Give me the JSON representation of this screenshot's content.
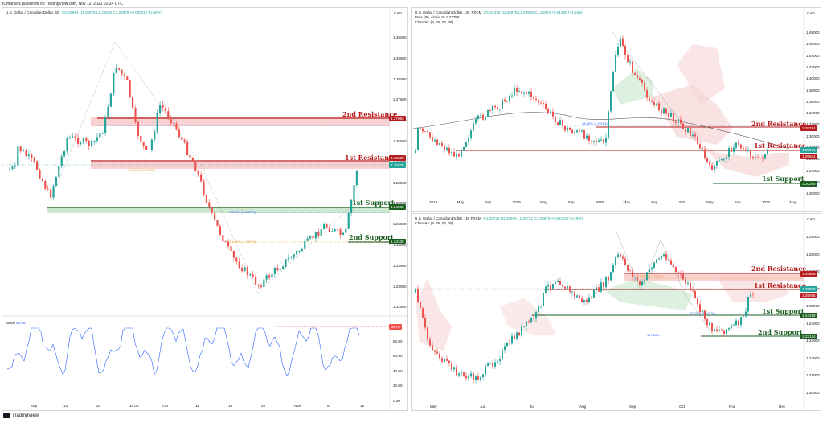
{
  "header": {
    "published": "ICmarkets published on TradingView.com, Nov 12, 2021 02:24 UTC"
  },
  "left_chart": {
    "title": "U.S. Dollar / Canadian Dollar, 4h,",
    "ohlc": "O1.25944  H1.25975  L1.25925  C1.25975  +0.00031 (+0.02%)",
    "currency": "CAD",
    "price_ticks": [
      "1.29000",
      "1.28500",
      "1.28000",
      "1.27500",
      "1.27000",
      "1.26500",
      "1.26000",
      "1.25500",
      "1.25000",
      "1.24500",
      "1.24000",
      "1.23500",
      "1.23000",
      "1.22500"
    ],
    "time_ticks": [
      "Sep",
      "13",
      "20",
      "14:00",
      "Oct",
      "11",
      "18",
      "25",
      "Nov",
      "8",
      "15"
    ],
    "levels": {
      "r2": {
        "label": "2nd Resistance",
        "price": "1.27083"
      },
      "r1": {
        "label": "1st Resistance",
        "price": "1.26039"
      },
      "s1": {
        "label": "1st Support",
        "price": "1.24935"
      },
      "s2": {
        "label": "2nd Support",
        "price": "1.24100"
      },
      "last": "1.25975"
    },
    "fib_labels": {
      "f618_top": "61.80% (1.25925)",
      "f382": "38.20% (1.24799)",
      "f618_low": "61.80% (1.24079)"
    },
    "stoch": {
      "label": "Stoch",
      "value": "90.95",
      "badge": "98.70",
      "ticks": [
        "80.00",
        "60.00",
        "40.00",
        "20.00",
        "0.00"
      ]
    }
  },
  "tr_chart": {
    "title": "U.S. Dollar / Canadian Dollar, 1W, FXCM",
    "ohlc": "O1.24430  H1.25975  L1.23869  C1.25974  +0.01446 (+1.16%)",
    "ema": "EMA (89, close, 0)  1.27756",
    "ichimoku": "Ichimoku (9, 26, 52, 26)",
    "currency": "CAD",
    "price_ticks": [
      "1.48000",
      "1.46000",
      "1.44000",
      "1.42000",
      "1.40000",
      "1.38000",
      "1.36000",
      "1.34000",
      "1.32000",
      "1.30000",
      "1.28000",
      "1.26000",
      "1.24000",
      "1.22000",
      "1.20000"
    ],
    "time_ticks": [
      "2018",
      "May",
      "Sep",
      "2019",
      "May",
      "Sep",
      "2020",
      "May",
      "Sep",
      "2021",
      "May",
      "Sep",
      "2022",
      "May"
    ],
    "levels": {
      "r2": {
        "label": "2nd Resistance",
        "price": "1.29784"
      },
      "r1": {
        "label": "1st Resistance",
        "price": "1.25944"
      },
      "s1": {
        "label": "1st Support",
        "price": "1.20290"
      },
      "last": "1.25974"
    },
    "fib_label": "38.20% (1.29784)"
  },
  "br_chart": {
    "title": "U.S. Dollar / Canadian Dollar, 1D, FXCM",
    "ohlc": "O1.25722  H1.25975  L1.25721  C1.25975  +0.00253 (+0.20%)",
    "ichimoku": "Ichimoku (9, 26, 52, 26)",
    "currency": "CAD",
    "price_ticks": [
      "1.29000",
      "1.28000",
      "1.27000",
      "1.26000",
      "1.25000",
      "1.24000",
      "1.23000",
      "1.22000",
      "1.21000",
      "1.20000"
    ],
    "time_ticks": [
      "May",
      "Jun",
      "Jul",
      "Aug",
      "Sep",
      "Oct",
      "Nov",
      "Dec"
    ],
    "levels": {
      "r2": {
        "label": "2nd Resistance",
        "price": "1.26906"
      },
      "r1": {
        "label": "1st Resistance",
        "price": "1.25915"
      },
      "s1": {
        "label": "1st Support",
        "price": "1.24219"
      },
      "s2": {
        "label": "2nd Support",
        "price": "1.23124"
      },
      "last": "1.25975"
    },
    "fib_labels": {
      "f618": "61.80% (1.26906)",
      "f50": "50.00% (1.24219)",
      "f1272": "127.20%"
    }
  },
  "footer": {
    "brand": "TradingView"
  },
  "colors": {
    "up": "#26a69a",
    "down": "#ef5350",
    "resistance": "#b71c1c",
    "support": "#1b5e20",
    "zone_red": "#f7c6c6",
    "zone_green": "#c8e6c9",
    "stoch": "#2962ff"
  }
}
